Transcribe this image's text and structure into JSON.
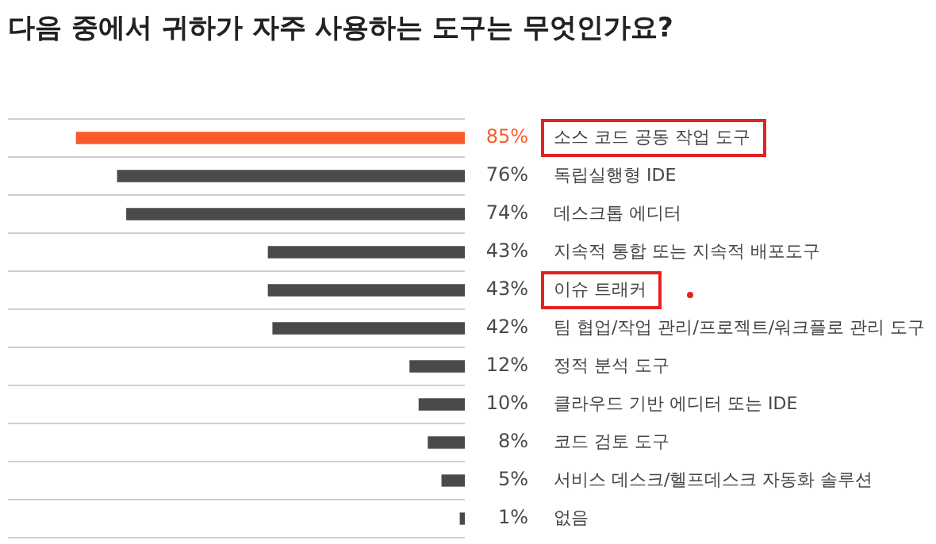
{
  "chart_data": {
    "type": "bar",
    "orientation": "horizontal",
    "title": "다음 중에서 귀하가 자주 사용하는 도구는 무엇인가요?",
    "categories": [
      "소스 코드 공동 작업 도구",
      "독립실행형 IDE",
      "데스크톱 에디터",
      "지속적 통합 또는 지속적 배포도구",
      "이슈 트래커",
      "팀 협업/작업 관리/프로젝트/워크플로 관리 도구",
      "정적 분석 도구",
      "클라우드 기반 에디터 또는 IDE",
      "코드 검토 도구",
      "서비스 데스크/헬프데스크 자동화 솔루션",
      "없음"
    ],
    "values": [
      85,
      76,
      74,
      43,
      43,
      42,
      12,
      10,
      8,
      5,
      1
    ],
    "value_labels": [
      "85%",
      "76%",
      "74%",
      "43%",
      "43%",
      "42%",
      "12%",
      "10%",
      "8%",
      "5%",
      "1%"
    ],
    "colors": [
      "#fc5a2a",
      "#4a4a4a",
      "#4a4a4a",
      "#4a4a4a",
      "#4a4a4a",
      "#4a4a4a",
      "#4a4a4a",
      "#4a4a4a",
      "#4a4a4a",
      "#4a4a4a",
      "#4a4a4a"
    ],
    "xlim": [
      100,
      0
    ],
    "grid": "y"
  }
}
